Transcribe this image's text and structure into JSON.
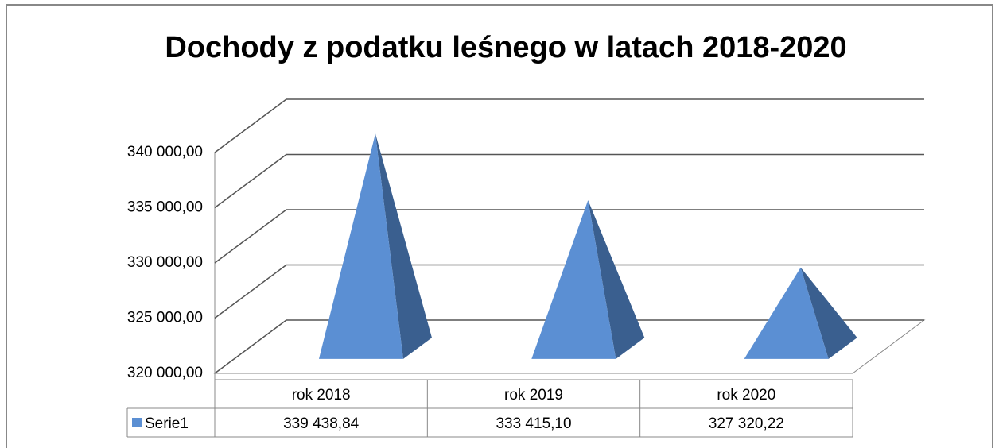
{
  "chart_data": {
    "type": "pyramid3d",
    "title": "Dochody z podatku leśnego w latach 2018-2020",
    "categories": [
      "rok 2018",
      "rok 2019",
      "rok 2020"
    ],
    "series": [
      {
        "name": "Serie1",
        "color": "#5b8fd3",
        "values": [
          339438.84,
          333415.1,
          327320.22
        ],
        "value_labels": [
          "339 438,84",
          "333 415,10",
          "327 320,22"
        ]
      }
    ],
    "ylim": [
      320000,
      340000
    ],
    "yticks": [
      {
        "value": 320000,
        "label": "320 000,00"
      },
      {
        "value": 325000,
        "label": "325 000,00"
      },
      {
        "value": 330000,
        "label": "330 000,00"
      },
      {
        "value": 335000,
        "label": "335 000,00"
      },
      {
        "value": 340000,
        "label": "340 000,00"
      }
    ],
    "grid": true,
    "data_table": true
  }
}
